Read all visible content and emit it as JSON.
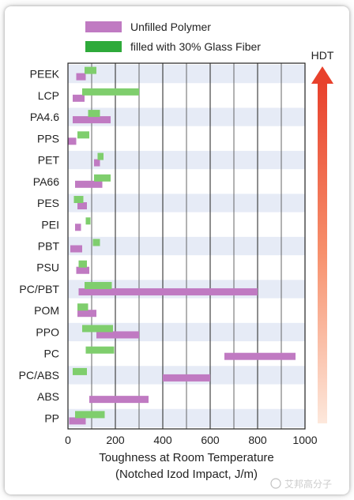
{
  "chart_data": {
    "type": "bar",
    "subtype": "floating-range-horizontal",
    "categories": [
      "PEEK",
      "LCP",
      "PA4.6",
      "PPS",
      "PET",
      "PA66",
      "PES",
      "PEI",
      "PBT",
      "PSU",
      "PC/PBT",
      "POM",
      "PPO",
      "PC",
      "PC/ABS",
      "ABS",
      "PP"
    ],
    "series": [
      {
        "name": "Unfilled Polymer",
        "color": "#c07ac2",
        "ranges": [
          [
            35,
            75
          ],
          [
            20,
            70
          ],
          [
            20,
            180
          ],
          [
            0,
            35
          ],
          [
            110,
            135
          ],
          [
            30,
            145
          ],
          [
            40,
            80
          ],
          [
            30,
            55
          ],
          [
            10,
            60
          ],
          [
            35,
            90
          ],
          [
            45,
            800
          ],
          [
            40,
            120
          ],
          [
            120,
            300
          ],
          [
            660,
            960
          ],
          [
            400,
            600
          ],
          [
            90,
            340
          ],
          [
            5,
            75
          ]
        ]
      },
      {
        "name": "filled with 30% Glass Fiber",
        "color": "#7fce6d",
        "ranges": [
          [
            70,
            120
          ],
          [
            60,
            300
          ],
          [
            85,
            135
          ],
          [
            40,
            90
          ],
          [
            125,
            150
          ],
          [
            110,
            180
          ],
          [
            25,
            65
          ],
          [
            75,
            95
          ],
          [
            105,
            135
          ],
          [
            45,
            80
          ],
          [
            70,
            185
          ],
          [
            40,
            85
          ],
          [
            60,
            190
          ],
          [
            75,
            195
          ],
          [
            20,
            80
          ],
          [
            0,
            0
          ],
          [
            30,
            155
          ]
        ]
      }
    ],
    "xlabel": "Toughness at Room Temperature",
    "xlabel2": "(Notched Izod Impact, J/m)",
    "xlim": [
      0,
      1000
    ],
    "xticks": [
      0,
      200,
      400,
      600,
      800,
      1000
    ],
    "grid": "vertical lines every 100",
    "legend": "top",
    "hdt_label": "HDT",
    "hdt_arrow_color": "#e8412c"
  },
  "watermark_text": "艾邦高分子"
}
